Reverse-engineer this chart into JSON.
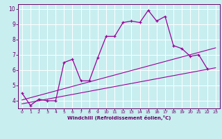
{
  "xlabel": "Windchill (Refroidissement éolien,°C)",
  "ylabel": "",
  "background_color": "#c8eef0",
  "grid_color": "#ffffff",
  "line_color": "#990099",
  "spine_color": "#660066",
  "xlim": [
    -0.5,
    23.5
  ],
  "ylim": [
    3.5,
    10.3
  ],
  "xticks": [
    0,
    1,
    2,
    3,
    4,
    5,
    6,
    7,
    8,
    9,
    10,
    11,
    12,
    13,
    14,
    15,
    16,
    17,
    18,
    19,
    20,
    21,
    22,
    23
  ],
  "yticks": [
    4,
    5,
    6,
    7,
    8,
    9,
    10
  ],
  "line1_x": [
    0,
    1,
    2,
    3,
    4,
    5,
    6,
    7,
    8,
    9,
    10,
    11,
    12,
    13,
    14,
    15,
    16,
    17,
    18,
    19,
    20,
    21,
    22
  ],
  "line1_y": [
    4.5,
    3.7,
    4.1,
    4.0,
    4.0,
    6.5,
    6.7,
    5.3,
    5.3,
    6.8,
    8.2,
    8.2,
    9.1,
    9.2,
    9.1,
    9.9,
    9.2,
    9.5,
    7.6,
    7.4,
    6.9,
    7.0,
    6.1
  ],
  "line2_x": [
    0,
    23
  ],
  "line2_y": [
    4.05,
    7.45
  ],
  "line3_x": [
    0,
    23
  ],
  "line3_y": [
    3.8,
    6.15
  ]
}
